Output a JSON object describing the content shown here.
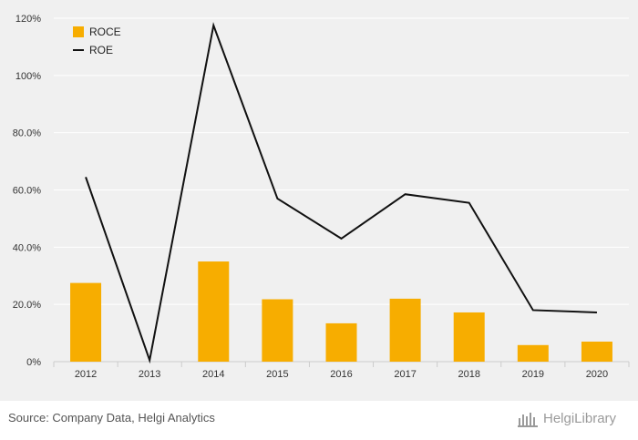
{
  "chart_data": {
    "type": "bar",
    "categories": [
      "2012",
      "2013",
      "2014",
      "2015",
      "2016",
      "2017",
      "2018",
      "2019",
      "2020"
    ],
    "series": [
      {
        "name": "ROCE",
        "kind": "bar",
        "color": "#f7ad00",
        "values": [
          27.5,
          0,
          35.0,
          21.8,
          13.4,
          22.0,
          17.2,
          5.8,
          7.0
        ]
      },
      {
        "name": "ROE",
        "kind": "line",
        "color": "#111111",
        "values": [
          64.5,
          0.5,
          117.5,
          57.0,
          43.0,
          58.5,
          55.5,
          18.0,
          17.2
        ]
      }
    ],
    "yticks": [
      "0%",
      "20.0%",
      "40.0%",
      "60.0%",
      "80.0%",
      "100%",
      "120%"
    ],
    "ylim": [
      0,
      120
    ],
    "grid": true,
    "legend": "top-left"
  },
  "footer": {
    "source": "Source: Company Data, Helgi Analytics",
    "brand": "HelgiLibrary"
  },
  "colors": {
    "background": "#f0f0f0",
    "grid": "#ffffff"
  }
}
